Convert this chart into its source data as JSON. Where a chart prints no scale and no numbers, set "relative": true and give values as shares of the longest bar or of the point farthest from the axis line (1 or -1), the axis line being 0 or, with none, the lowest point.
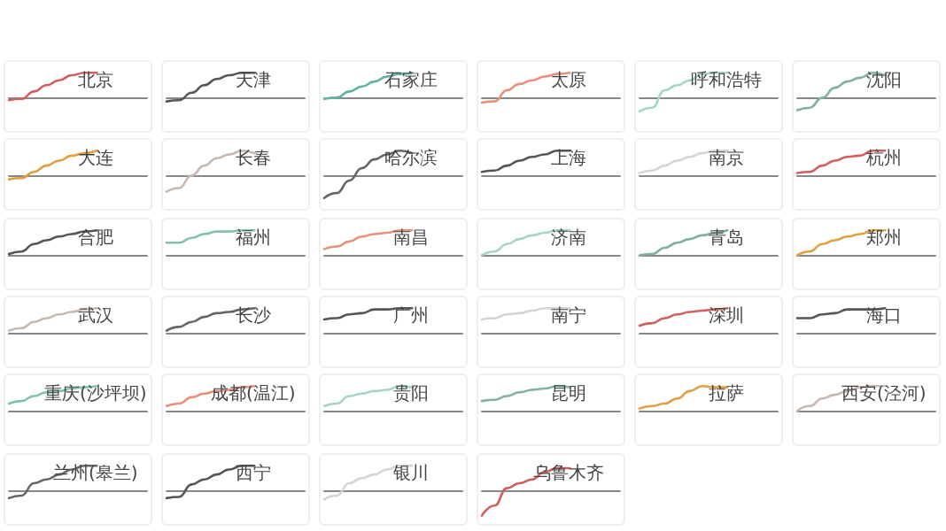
{
  "chart_data": [
    {
      "type": "line",
      "title": "北京",
      "relative": true,
      "color": "#d0605a",
      "categories": [
        null,
        null,
        null,
        null,
        null,
        null,
        null,
        null,
        null,
        null,
        null,
        null
      ],
      "values": [
        -0.1,
        -0.05,
        0.25,
        0.5,
        0.7,
        0.9,
        1,
        1,
        null,
        null,
        null,
        null
      ]
    },
    {
      "type": "line",
      "title": "天津",
      "relative": true,
      "color": "#555555",
      "categories": [
        null,
        null,
        null,
        null,
        null,
        null,
        null,
        null,
        null,
        null,
        null,
        null
      ],
      "values": [
        -0.15,
        -0.1,
        0.2,
        0.5,
        0.75,
        0.9,
        1,
        1,
        null,
        null,
        null,
        null
      ]
    },
    {
      "type": "line",
      "title": "石家庄",
      "relative": true,
      "color": "#5fb3a3",
      "categories": [
        null,
        null,
        null,
        null,
        null,
        null,
        null,
        null,
        null,
        null,
        null,
        null
      ],
      "values": [
        -0.05,
        0,
        0.25,
        0.45,
        0.65,
        0.85,
        0.95,
        1,
        null,
        null,
        null,
        null
      ]
    },
    {
      "type": "line",
      "title": "太原",
      "relative": true,
      "color": "#e8907a",
      "categories": [
        null,
        null,
        null,
        null,
        null,
        null,
        null,
        null,
        null,
        null,
        null,
        null
      ],
      "values": [
        -0.2,
        -0.15,
        0.3,
        0.55,
        0.7,
        0.85,
        0.95,
        1,
        null,
        null,
        null,
        null
      ]
    },
    {
      "type": "line",
      "title": "呼和浩特",
      "relative": true,
      "color": "#a3d6c6",
      "categories": [
        null,
        null,
        null,
        null,
        null,
        null,
        null,
        null,
        null,
        null,
        null,
        null
      ],
      "values": [
        -0.55,
        -0.4,
        0.3,
        0.5,
        0.7,
        0.95,
        1,
        1,
        null,
        null,
        null,
        null
      ]
    },
    {
      "type": "line",
      "title": "沈阳",
      "relative": true,
      "color": "#7fb3a0",
      "categories": [
        null,
        null,
        null,
        null,
        null,
        null,
        null,
        null,
        null,
        null,
        null,
        null
      ],
      "values": [
        -0.5,
        -0.4,
        0,
        0.4,
        0.65,
        0.8,
        1,
        0.9,
        null,
        null,
        null,
        null
      ]
    },
    {
      "type": "line",
      "title": "大连",
      "relative": true,
      "color": "#e0a040",
      "categories": [
        null,
        null,
        null,
        null,
        null,
        null,
        null,
        null,
        null,
        null,
        null,
        null
      ],
      "values": [
        -0.15,
        -0.1,
        0.15,
        0.4,
        0.6,
        0.8,
        0.9,
        1,
        null,
        null,
        null,
        null
      ]
    },
    {
      "type": "line",
      "title": "长春",
      "relative": true,
      "color": "#c8b8b0",
      "categories": [
        null,
        null,
        null,
        null,
        null,
        null,
        null,
        null,
        null,
        null,
        null,
        null
      ],
      "values": [
        -0.65,
        -0.5,
        0,
        0.4,
        0.7,
        0.85,
        1,
        0.9,
        null,
        null,
        null,
        null
      ]
    },
    {
      "type": "line",
      "title": "哈尔滨",
      "relative": true,
      "color": "#666666",
      "categories": [
        null,
        null,
        null,
        null,
        null,
        null,
        null,
        null,
        null,
        null,
        null,
        null
      ],
      "values": [
        -0.9,
        -0.7,
        -0.2,
        0.3,
        0.65,
        0.85,
        1,
        0.9,
        null,
        null,
        null,
        null
      ]
    },
    {
      "type": "line",
      "title": "上海",
      "relative": true,
      "color": "#555555",
      "categories": [
        null,
        null,
        null,
        null,
        null,
        null,
        null,
        null,
        null,
        null,
        null,
        null
      ],
      "values": [
        0.15,
        0.2,
        0.4,
        0.6,
        0.75,
        0.85,
        1,
        1,
        null,
        null,
        null,
        null
      ]
    },
    {
      "type": "line",
      "title": "南京",
      "relative": true,
      "color": "#d4d4d4",
      "categories": [
        null,
        null,
        null,
        null,
        null,
        null,
        null,
        null,
        null,
        null,
        null,
        null
      ],
      "values": [
        0.1,
        0.2,
        0.4,
        0.6,
        0.75,
        0.9,
        1,
        1,
        null,
        null,
        null,
        null
      ]
    },
    {
      "type": "line",
      "title": "杭州",
      "relative": true,
      "color": "#d0605a",
      "categories": [
        null,
        null,
        null,
        null,
        null,
        null,
        null,
        null,
        null,
        null,
        null,
        null
      ],
      "values": [
        0.1,
        0.15,
        0.4,
        0.6,
        0.75,
        0.8,
        1,
        1,
        null,
        null,
        null,
        null
      ]
    },
    {
      "type": "line",
      "title": "合肥",
      "relative": true,
      "color": "#555555",
      "categories": [
        null,
        null,
        null,
        null,
        null,
        null,
        null,
        null,
        null,
        null,
        null,
        null
      ],
      "values": [
        0.05,
        0.15,
        0.45,
        0.6,
        0.75,
        0.85,
        0.95,
        1,
        null,
        null,
        null,
        null
      ]
    },
    {
      "type": "line",
      "title": "福州",
      "relative": true,
      "color": "#7fc4aa",
      "categories": [
        null,
        null,
        null,
        null,
        null,
        null,
        null,
        null,
        null,
        null,
        null,
        null
      ],
      "values": [
        0.5,
        0.5,
        0.7,
        0.85,
        0.95,
        0.95,
        1,
        1,
        null,
        null,
        null,
        null
      ]
    },
    {
      "type": "line",
      "title": "南昌",
      "relative": true,
      "color": "#e8907a",
      "categories": [
        null,
        null,
        null,
        null,
        null,
        null,
        null,
        null,
        null,
        null,
        null,
        null
      ],
      "values": [
        0.25,
        0.35,
        0.55,
        0.75,
        0.85,
        0.9,
        1,
        1,
        null,
        null,
        null,
        null
      ]
    },
    {
      "type": "line",
      "title": "济南",
      "relative": true,
      "color": "#a3d6c6",
      "categories": [
        null,
        null,
        null,
        null,
        null,
        null,
        null,
        null,
        null,
        null,
        null,
        null
      ],
      "values": [
        0,
        0.15,
        0.45,
        0.65,
        0.8,
        0.9,
        1,
        1,
        null,
        null,
        null,
        null
      ]
    },
    {
      "type": "line",
      "title": "青岛",
      "relative": true,
      "color": "#7fb3a0",
      "categories": [
        null,
        null,
        null,
        null,
        null,
        null,
        null,
        null,
        null,
        null,
        null,
        null
      ],
      "values": [
        0,
        0.05,
        0.3,
        0.5,
        0.65,
        0.8,
        0.9,
        1,
        null,
        null,
        null,
        null
      ]
    },
    {
      "type": "line",
      "title": "郑州",
      "relative": true,
      "color": "#e0a040",
      "categories": [
        null,
        null,
        null,
        null,
        null,
        null,
        null,
        null,
        null,
        null,
        null,
        null
      ],
      "values": [
        0,
        0.15,
        0.45,
        0.6,
        0.75,
        0.85,
        1,
        1,
        null,
        null,
        null,
        null
      ]
    },
    {
      "type": "line",
      "title": "武汉",
      "relative": true,
      "color": "#c8b8b0",
      "categories": [
        null,
        null,
        null,
        null,
        null,
        null,
        null,
        null,
        null,
        null,
        null,
        null
      ],
      "values": [
        0.1,
        0.2,
        0.45,
        0.6,
        0.75,
        0.85,
        0.95,
        1,
        null,
        null,
        null,
        null
      ]
    },
    {
      "type": "line",
      "title": "长沙",
      "relative": true,
      "color": "#666666",
      "categories": [
        null,
        null,
        null,
        null,
        null,
        null,
        null,
        null,
        null,
        null,
        null,
        null
      ],
      "values": [
        0.1,
        0.25,
        0.45,
        0.65,
        0.8,
        0.85,
        0.95,
        1,
        null,
        null,
        null,
        null
      ]
    },
    {
      "type": "line",
      "title": "广州",
      "relative": true,
      "color": "#555555",
      "categories": [
        null,
        null,
        null,
        null,
        null,
        null,
        null,
        null,
        null,
        null,
        null,
        null
      ],
      "values": [
        0.55,
        0.6,
        0.75,
        0.8,
        0.95,
        0.95,
        1,
        1,
        null,
        null,
        null,
        null
      ]
    },
    {
      "type": "line",
      "title": "南宁",
      "relative": true,
      "color": "#d4d4d4",
      "categories": [
        null,
        null,
        null,
        null,
        null,
        null,
        null,
        null,
        null,
        null,
        null,
        null
      ],
      "values": [
        0.55,
        0.6,
        0.75,
        0.8,
        0.9,
        1,
        1,
        1,
        null,
        null,
        null,
        null
      ]
    },
    {
      "type": "line",
      "title": "深圳",
      "relative": true,
      "color": "#d0605a",
      "categories": [
        null,
        null,
        null,
        null,
        null,
        null,
        null,
        null,
        null,
        null,
        null,
        null
      ],
      "values": [
        0.3,
        0.4,
        0.6,
        0.75,
        0.85,
        0.9,
        0.95,
        1,
        null,
        null,
        null,
        null
      ]
    },
    {
      "type": "line",
      "title": "海口",
      "relative": true,
      "color": "#555555",
      "categories": [
        null,
        null,
        null,
        null,
        null,
        null,
        null,
        null,
        null,
        null,
        null,
        null
      ],
      "values": [
        0.6,
        0.6,
        0.75,
        0.8,
        0.95,
        0.95,
        0.95,
        1,
        null,
        null,
        null,
        null
      ]
    },
    {
      "type": "line",
      "title": "重庆(沙坪坝)",
      "relative": true,
      "color": "#7fc4aa",
      "categories": [
        null,
        null,
        null,
        null,
        null,
        null,
        null,
        null,
        null,
        null,
        null,
        null
      ],
      "values": [
        0.3,
        0.4,
        0.6,
        0.75,
        0.8,
        0.9,
        0.95,
        1,
        null,
        null,
        null,
        null
      ]
    },
    {
      "type": "line",
      "title": "成都(温江)",
      "relative": true,
      "color": "#e8907a",
      "categories": [
        null,
        null,
        null,
        null,
        null,
        null,
        null,
        null,
        null,
        null,
        null,
        null
      ],
      "values": [
        0.2,
        0.3,
        0.55,
        0.7,
        0.8,
        0.85,
        0.95,
        1,
        null,
        null,
        null,
        null
      ]
    },
    {
      "type": "line",
      "title": "贵阳",
      "relative": true,
      "color": "#a3d6c6",
      "categories": [
        null,
        null,
        null,
        null,
        null,
        null,
        null,
        null,
        null,
        null,
        null,
        null
      ],
      "values": [
        0.2,
        0.3,
        0.6,
        0.7,
        0.8,
        0.85,
        1,
        0.95,
        null,
        null,
        null,
        null
      ]
    },
    {
      "type": "line",
      "title": "昆明",
      "relative": true,
      "color": "#7fb3a0",
      "categories": [
        null,
        null,
        null,
        null,
        null,
        null,
        null,
        null,
        null,
        null,
        null,
        null
      ],
      "values": [
        0.4,
        0.45,
        0.6,
        0.75,
        0.85,
        0.9,
        1,
        0.95,
        null,
        null,
        null,
        null
      ]
    },
    {
      "type": "line",
      "title": "拉萨",
      "relative": true,
      "color": "#e0a040",
      "categories": [
        null,
        null,
        null,
        null,
        null,
        null,
        null,
        null,
        null,
        null,
        null,
        null
      ],
      "values": [
        0.1,
        0.2,
        0.3,
        0.5,
        0.8,
        1,
        0.95,
        0.95,
        null,
        null,
        null,
        null
      ]
    },
    {
      "type": "line",
      "title": "西安(泾河)",
      "relative": true,
      "color": "#c8b8b0",
      "categories": [
        null,
        null,
        null,
        null,
        null,
        null,
        null,
        null,
        null,
        null,
        null,
        null
      ],
      "values": [
        0,
        0.2,
        0.5,
        0.65,
        0.8,
        0.95,
        1,
        1,
        null,
        null,
        null,
        null
      ]
    },
    {
      "type": "line",
      "title": "兰州(皋兰)",
      "relative": true,
      "color": "#666666",
      "categories": [
        null,
        null,
        null,
        null,
        null,
        null,
        null,
        null,
        null,
        null,
        null,
        null
      ],
      "values": [
        -0.3,
        -0.2,
        0.3,
        0.45,
        0.65,
        0.85,
        1,
        1,
        null,
        null,
        null,
        null
      ]
    },
    {
      "type": "line",
      "title": "西宁",
      "relative": true,
      "color": "#555555",
      "categories": [
        null,
        null,
        null,
        null,
        null,
        null,
        null,
        null,
        null,
        null,
        null,
        null
      ],
      "values": [
        -0.3,
        -0.25,
        0.25,
        0.45,
        0.65,
        0.85,
        1,
        1,
        null,
        null,
        null,
        null
      ]
    },
    {
      "type": "line",
      "title": "银川",
      "relative": true,
      "color": "#d4d4d4",
      "categories": [
        null,
        null,
        null,
        null,
        null,
        null,
        null,
        null,
        null,
        null,
        null,
        null
      ],
      "values": [
        -0.35,
        -0.2,
        0.3,
        0.5,
        0.65,
        0.85,
        1,
        1,
        null,
        null,
        null,
        null
      ]
    },
    {
      "type": "line",
      "title": "乌鲁木齐",
      "relative": true,
      "color": "#d0605a",
      "categories": [
        null,
        null,
        null,
        null,
        null,
        null,
        null,
        null,
        null,
        null,
        null,
        null
      ],
      "values": [
        -1,
        -0.6,
        0.1,
        0.3,
        0.45,
        0.75,
        0.9,
        0.9,
        null,
        null,
        null,
        null
      ]
    }
  ]
}
